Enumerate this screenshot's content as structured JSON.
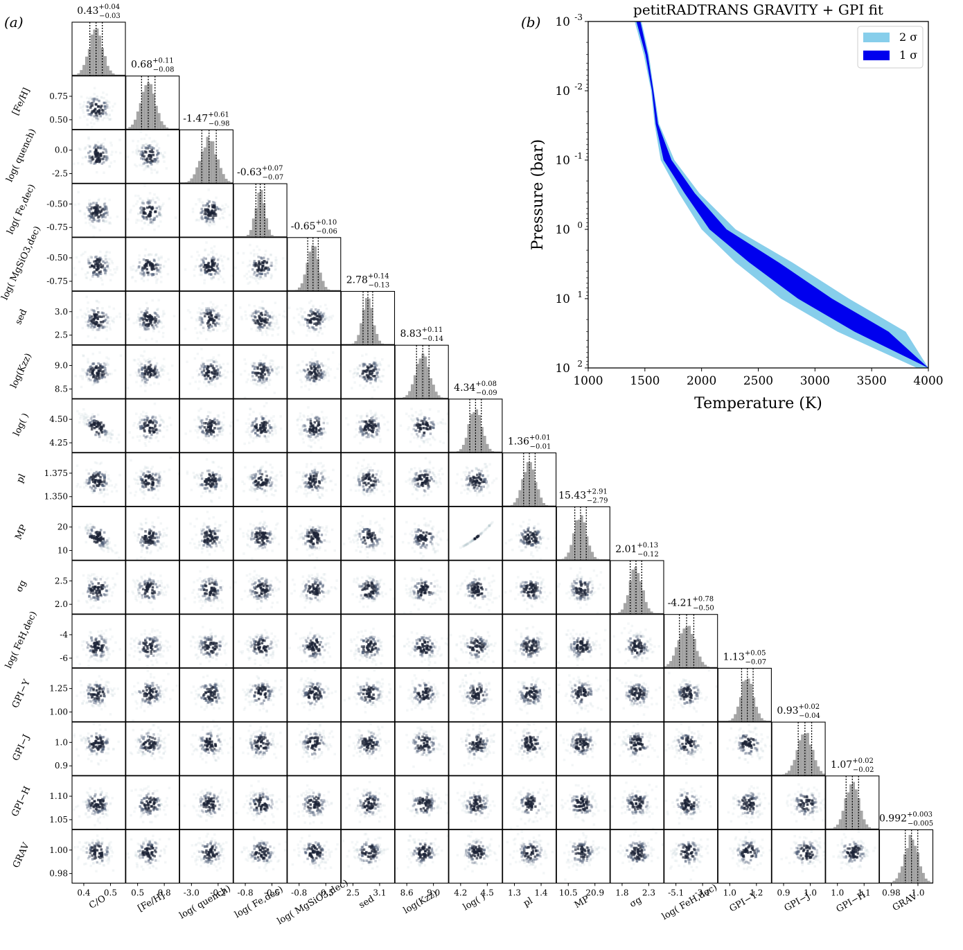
{
  "figure": {
    "panel_a_label": "(a)",
    "panel_b_label": "(b)"
  },
  "chart_data": [
    {
      "type": "heatmap",
      "subtype": "corner-plot",
      "parameters": [
        {
          "axis_label": "C/O",
          "y_label": "",
          "summary": "0.43",
          "plus": "+0.04",
          "minus": "−0.03",
          "x_ticks": [
            "0.4",
            "0.5"
          ],
          "y_ticks": [],
          "hist_shape": 1,
          "best": 0.45,
          "spread": 0.13
        },
        {
          "axis_label": "[Fe/H]",
          "y_label": "[Fe/H]",
          "summary": "0.68",
          "plus": "+0.11",
          "minus": "−0.08",
          "x_ticks": [
            "0.5",
            "0.8"
          ],
          "y_ticks": [
            "0.75",
            "0.50"
          ],
          "hist_shape": 1,
          "best": 0.42,
          "spread": 0.14
        },
        {
          "axis_label": "log( quench)",
          "y_label": "log( quench)",
          "summary": "-1.47",
          "plus": "+0.61",
          "minus": "−0.98",
          "x_ticks": [
            "-3.0",
            "-0.2"
          ],
          "y_ticks": [
            "0.0",
            "-2.5"
          ],
          "hist_shape": 1,
          "best": 0.55,
          "spread": 0.15
        },
        {
          "axis_label": "log( Fe,dec)",
          "y_label": "log( Fe,dec)",
          "summary": "-0.63",
          "plus": "+0.07",
          "minus": "−0.07",
          "x_ticks": [
            "-0.8",
            "-0.5"
          ],
          "y_ticks": [
            "-0.50",
            "-0.75"
          ],
          "hist_shape": 1,
          "best": 0.5,
          "spread": 0.09
        },
        {
          "axis_label": "log( MgSiO3,dec)",
          "y_label": "log( MgSiO3,dec)",
          "summary": "-0.65",
          "plus": "+0.10",
          "minus": "−0.06",
          "x_ticks": [
            "-0.8",
            "-0.5"
          ],
          "y_ticks": [
            "-0.50",
            "-0.75"
          ],
          "hist_shape": 1,
          "best": 0.48,
          "spread": 0.11
        },
        {
          "axis_label": "sed",
          "y_label": "sed",
          "summary": "2.78",
          "plus": "+0.14",
          "minus": "−0.13",
          "x_ticks": [
            "2.5",
            "3.1"
          ],
          "y_ticks": [
            "3.0",
            "2.5"
          ],
          "hist_shape": 1,
          "best": 0.5,
          "spread": 0.1
        },
        {
          "axis_label": "log(Kzz)",
          "y_label": "log(Kzz)",
          "summary": "8.83",
          "plus": "+0.11",
          "minus": "−0.14",
          "x_ticks": [
            "8.6",
            "9.0"
          ],
          "y_ticks": [
            "9.0",
            "8.5"
          ],
          "hist_shape": 1,
          "best": 0.52,
          "spread": 0.13
        },
        {
          "axis_label": "log( )",
          "y_label": "log( )",
          "summary": "4.34",
          "plus": "+0.08",
          "minus": "−0.09",
          "x_ticks": [
            "4.2",
            "4.5"
          ],
          "y_ticks": [
            "4.50",
            "4.25"
          ],
          "hist_shape": 1,
          "best": 0.5,
          "spread": 0.12
        },
        {
          "axis_label": "pl",
          "y_label": "pl",
          "summary": "1.36",
          "plus": "+0.01",
          "minus": "−0.01",
          "x_ticks": [
            "1.3",
            "1.4"
          ],
          "y_ticks": [
            "1.375",
            "1.350"
          ],
          "hist_shape": 1,
          "best": 0.5,
          "spread": 0.12
        },
        {
          "axis_label": "MP",
          "y_label": "MP",
          "summary": "15.43",
          "plus": "+2.91",
          "minus": "−2.79",
          "x_ticks": [
            "10.5",
            "20.9"
          ],
          "y_ticks": [
            "20",
            "10"
          ],
          "hist_shape": 1,
          "best": 0.45,
          "spread": 0.12
        },
        {
          "axis_label": "σg",
          "y_label": "σg",
          "summary": "2.01",
          "plus": "+0.13",
          "minus": "−0.12",
          "x_ticks": [
            "1.8",
            "2.3"
          ],
          "y_ticks": [
            "2.5",
            "2.0"
          ],
          "hist_shape": 1,
          "best": 0.48,
          "spread": 0.12
        },
        {
          "axis_label": "log( FeH,dec)",
          "y_label": "log( FeH,dec)",
          "summary": "-4.21",
          "plus": "+0.78",
          "minus": "−0.50",
          "x_ticks": [
            "-5.1",
            "-3.1"
          ],
          "y_ticks": [
            "-4",
            "-6"
          ],
          "hist_shape": 1,
          "best": 0.42,
          "spread": 0.15
        },
        {
          "axis_label": "GPI−Y",
          "y_label": "GPI−Y",
          "summary": "1.13",
          "plus": "+0.05",
          "minus": "−0.07",
          "x_ticks": [
            "1.0",
            "1.2"
          ],
          "y_ticks": [
            "1.25",
            "1.00"
          ],
          "hist_shape": 1,
          "best": 0.55,
          "spread": 0.12
        },
        {
          "axis_label": "GPI−J",
          "y_label": "GPI−J",
          "summary": "0.93",
          "plus": "+0.02",
          "minus": "−0.04",
          "x_ticks": [
            "0.9",
            "1.0"
          ],
          "y_ticks": [
            "1.0",
            "0.9"
          ],
          "hist_shape": 1,
          "best": 0.62,
          "spread": 0.14
        },
        {
          "axis_label": "GPI−H",
          "y_label": "GPI−H",
          "summary": "1.07",
          "plus": "+0.02",
          "minus": "−0.02",
          "x_ticks": [
            "1.0",
            "1.1"
          ],
          "y_ticks": [
            "1.10",
            "1.05"
          ],
          "hist_shape": 1,
          "best": 0.5,
          "spread": 0.13
        },
        {
          "axis_label": "GRAV",
          "y_label": "GRAV",
          "summary": "0.992",
          "plus": "+0.003",
          "minus": "−0.005",
          "x_ticks": [
            "0.98",
            "1.0"
          ],
          "y_ticks": [
            "1.00",
            "0.98"
          ],
          "hist_shape": 1,
          "best": 0.6,
          "spread": 0.13
        }
      ]
    },
    {
      "type": "area",
      "title": "petitRADTRANS GRAVITY + GPI fit",
      "xlabel": "Temperature (K)",
      "ylabel": "Pressure (bar)",
      "xlim": [
        1000,
        4000
      ],
      "ylim_log_pressure_bar": [
        0.001,
        100
      ],
      "yscale": "log",
      "y_inverted": true,
      "x_ticks": [
        "1000",
        "1500",
        "2000",
        "2500",
        "3000",
        "3500",
        "4000"
      ],
      "y_tick_exponents": [
        "-3",
        "-2",
        "-1",
        "0",
        "1",
        "2"
      ],
      "legend_position": "top-right",
      "series": [
        {
          "name": "2 σ",
          "color": "#87ceeb",
          "pressure_bar": [
            0.001,
            0.003,
            0.01,
            0.03,
            0.1,
            0.3,
            1,
            3,
            10,
            30,
            100
          ],
          "t_low": [
            1410,
            1490,
            1555,
            1585,
            1640,
            1800,
            2000,
            2300,
            2700,
            3200,
            3900
          ],
          "t_high": [
            1470,
            1535,
            1580,
            1625,
            1760,
            1980,
            2300,
            2800,
            3300,
            3800,
            4000
          ]
        },
        {
          "name": "1 σ",
          "color": "#0000ee",
          "pressure_bar": [
            0.001,
            0.003,
            0.01,
            0.03,
            0.1,
            0.3,
            1,
            3,
            10,
            30,
            100
          ],
          "t_low": [
            1425,
            1505,
            1563,
            1595,
            1665,
            1850,
            2070,
            2420,
            2850,
            3350,
            4000
          ],
          "t_high": [
            1460,
            1525,
            1575,
            1615,
            1735,
            1940,
            2220,
            2680,
            3150,
            3650,
            4000
          ]
        }
      ]
    }
  ]
}
